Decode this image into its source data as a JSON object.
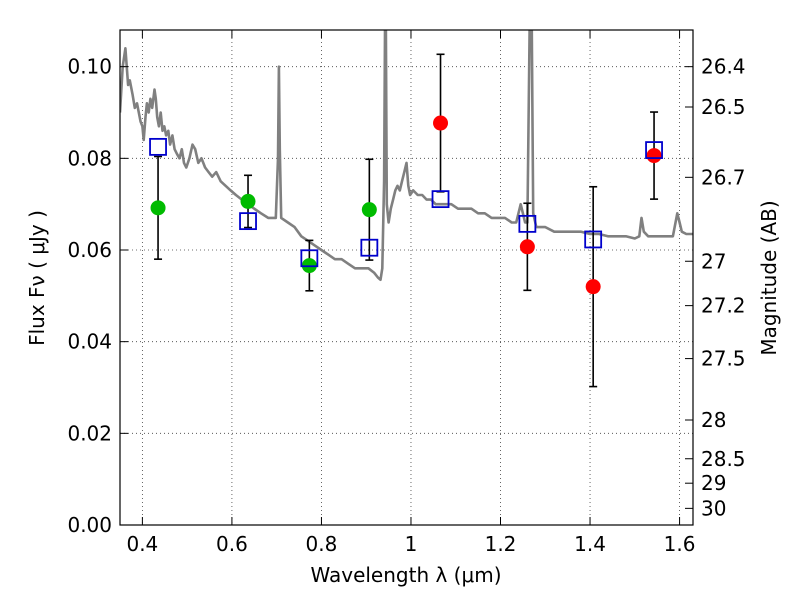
{
  "chart_data": {
    "type": "scatter",
    "xlabel": "Wavelength  λ (μm)",
    "ylabel": "Flux  Fν  ( μJy )",
    "y2label": "Magnitude (AB)",
    "xlim": [
      0.35,
      1.63
    ],
    "ylim": [
      0.0,
      0.108
    ],
    "grid": true,
    "x_ticks": [
      0.4,
      0.6,
      0.8,
      1.0,
      1.2,
      1.4,
      1.6
    ],
    "x_tick_labels": [
      "0.4",
      "0.6",
      "0.8",
      "1",
      "1.2",
      "1.4",
      "1.6"
    ],
    "y_ticks": [
      0.0,
      0.02,
      0.04,
      0.06,
      0.08,
      0.1
    ],
    "y_tick_labels": [
      "0.00",
      "0.02",
      "0.04",
      "0.06",
      "0.08",
      "0.10"
    ],
    "y2_ticks": [
      {
        "label": "26.4",
        "mag": 26.4
      },
      {
        "label": "26.5",
        "mag": 26.5
      },
      {
        "label": "26.7",
        "mag": 26.7
      },
      {
        "label": "27",
        "mag": 27.0
      },
      {
        "label": "27.2",
        "mag": 27.2
      },
      {
        "label": "27.5",
        "mag": 27.5
      },
      {
        "label": "28",
        "mag": 28.0
      },
      {
        "label": "28.5",
        "mag": 28.5
      },
      {
        "label": "29",
        "mag": 29.0
      },
      {
        "label": "30",
        "mag": 30.0
      }
    ],
    "series": [
      {
        "marker": "circle",
        "color": "#00bb00",
        "points": [
          {
            "x": 0.435,
            "y": 0.0692,
            "err": 0.0112
          },
          {
            "x": 0.636,
            "y": 0.0706,
            "err": 0.0057
          },
          {
            "x": 0.773,
            "y": 0.0566,
            "err": 0.0055
          },
          {
            "x": 0.907,
            "y": 0.0688,
            "err": 0.011
          }
        ]
      },
      {
        "marker": "circle",
        "color": "#ff0000",
        "points": [
          {
            "x": 1.066,
            "y": 0.0877,
            "err": 0.015
          },
          {
            "x": 1.26,
            "y": 0.0607,
            "err": 0.0095
          },
          {
            "x": 1.407,
            "y": 0.052,
            "err": 0.0218
          },
          {
            "x": 1.543,
            "y": 0.0806,
            "err": 0.0095
          }
        ]
      },
      {
        "marker": "open-square",
        "color": "#0000cc",
        "points": [
          {
            "x": 0.435,
            "y": 0.0825
          },
          {
            "x": 0.636,
            "y": 0.0663
          },
          {
            "x": 0.773,
            "y": 0.0582
          },
          {
            "x": 0.907,
            "y": 0.0605
          },
          {
            "x": 1.066,
            "y": 0.0711
          },
          {
            "x": 1.26,
            "y": 0.0657
          },
          {
            "x": 1.407,
            "y": 0.0623
          },
          {
            "x": 1.543,
            "y": 0.0818
          }
        ]
      },
      {
        "marker": "line",
        "color": "#808080",
        "points": [
          [
            0.35,
            0.09
          ],
          [
            0.356,
            0.1
          ],
          [
            0.362,
            0.104
          ],
          [
            0.368,
            0.096
          ],
          [
            0.372,
            0.097
          ],
          [
            0.378,
            0.094
          ],
          [
            0.383,
            0.091
          ],
          [
            0.388,
            0.092
          ],
          [
            0.392,
            0.09
          ],
          [
            0.396,
            0.088
          ],
          [
            0.4,
            0.087
          ],
          [
            0.403,
            0.084
          ],
          [
            0.407,
            0.089
          ],
          [
            0.41,
            0.092
          ],
          [
            0.414,
            0.09
          ],
          [
            0.418,
            0.093
          ],
          [
            0.422,
            0.091
          ],
          [
            0.427,
            0.095
          ],
          [
            0.43,
            0.093
          ],
          [
            0.433,
            0.089
          ],
          [
            0.437,
            0.087
          ],
          [
            0.441,
            0.09
          ],
          [
            0.445,
            0.086
          ],
          [
            0.449,
            0.087
          ],
          [
            0.453,
            0.085
          ],
          [
            0.458,
            0.086
          ],
          [
            0.462,
            0.083
          ],
          [
            0.467,
            0.085
          ],
          [
            0.472,
            0.082
          ],
          [
            0.477,
            0.081
          ],
          [
            0.483,
            0.08
          ],
          [
            0.488,
            0.082
          ],
          [
            0.493,
            0.079
          ],
          [
            0.498,
            0.078
          ],
          [
            0.505,
            0.08
          ],
          [
            0.512,
            0.083
          ],
          [
            0.518,
            0.082
          ],
          [
            0.525,
            0.079
          ],
          [
            0.532,
            0.08
          ],
          [
            0.54,
            0.078
          ],
          [
            0.548,
            0.077
          ],
          [
            0.556,
            0.076
          ],
          [
            0.565,
            0.077
          ],
          [
            0.575,
            0.075
          ],
          [
            0.586,
            0.074
          ],
          [
            0.597,
            0.073
          ],
          [
            0.609,
            0.072
          ],
          [
            0.622,
            0.071
          ],
          [
            0.636,
            0.07
          ],
          [
            0.65,
            0.069
          ],
          [
            0.665,
            0.068
          ],
          [
            0.681,
            0.067
          ],
          [
            0.698,
            0.067
          ],
          [
            0.703,
            0.08
          ],
          [
            0.705,
            0.1
          ],
          [
            0.707,
            0.082
          ],
          [
            0.71,
            0.067
          ],
          [
            0.725,
            0.066
          ],
          [
            0.74,
            0.065
          ],
          [
            0.755,
            0.063
          ],
          [
            0.77,
            0.062
          ],
          [
            0.785,
            0.061
          ],
          [
            0.8,
            0.06
          ],
          [
            0.815,
            0.059
          ],
          [
            0.83,
            0.058
          ],
          [
            0.845,
            0.058
          ],
          [
            0.86,
            0.057
          ],
          [
            0.875,
            0.056
          ],
          [
            0.89,
            0.056
          ],
          [
            0.905,
            0.056
          ],
          [
            0.918,
            0.055
          ],
          [
            0.926,
            0.054
          ],
          [
            0.932,
            0.0535
          ],
          [
            0.936,
            0.056
          ],
          [
            0.94,
            0.075
          ],
          [
            0.942,
            0.108
          ],
          [
            0.944,
            0.108
          ],
          [
            0.946,
            0.07
          ],
          [
            0.95,
            0.066
          ],
          [
            0.955,
            0.069
          ],
          [
            0.96,
            0.071
          ],
          [
            0.965,
            0.073
          ],
          [
            0.97,
            0.074
          ],
          [
            0.975,
            0.073
          ],
          [
            0.98,
            0.075
          ],
          [
            0.985,
            0.077
          ],
          [
            0.99,
            0.079
          ],
          [
            0.994,
            0.074
          ],
          [
            0.998,
            0.072
          ],
          [
            1.005,
            0.073
          ],
          [
            1.015,
            0.072
          ],
          [
            1.025,
            0.072
          ],
          [
            1.035,
            0.071
          ],
          [
            1.045,
            0.071
          ],
          [
            1.055,
            0.07
          ],
          [
            1.065,
            0.07
          ],
          [
            1.075,
            0.07
          ],
          [
            1.09,
            0.07
          ],
          [
            1.105,
            0.069
          ],
          [
            1.12,
            0.069
          ],
          [
            1.135,
            0.069
          ],
          [
            1.15,
            0.068
          ],
          [
            1.165,
            0.068
          ],
          [
            1.18,
            0.067
          ],
          [
            1.195,
            0.067
          ],
          [
            1.21,
            0.067
          ],
          [
            1.225,
            0.066
          ],
          [
            1.235,
            0.066
          ],
          [
            1.245,
            0.07
          ],
          [
            1.25,
            0.068
          ],
          [
            1.255,
            0.066
          ],
          [
            1.26,
            0.066
          ],
          [
            1.265,
            0.108
          ],
          [
            1.27,
            0.108
          ],
          [
            1.273,
            0.068
          ],
          [
            1.28,
            0.065
          ],
          [
            1.3,
            0.065
          ],
          [
            1.32,
            0.064
          ],
          [
            1.34,
            0.064
          ],
          [
            1.36,
            0.064
          ],
          [
            1.38,
            0.064
          ],
          [
            1.4,
            0.0635
          ],
          [
            1.42,
            0.0635
          ],
          [
            1.44,
            0.063
          ],
          [
            1.46,
            0.063
          ],
          [
            1.48,
            0.063
          ],
          [
            1.5,
            0.0625
          ],
          [
            1.51,
            0.063
          ],
          [
            1.515,
            0.067
          ],
          [
            1.52,
            0.064
          ],
          [
            1.53,
            0.063
          ],
          [
            1.55,
            0.063
          ],
          [
            1.57,
            0.063
          ],
          [
            1.585,
            0.063
          ],
          [
            1.595,
            0.068
          ],
          [
            1.6,
            0.066
          ],
          [
            1.605,
            0.064
          ],
          [
            1.615,
            0.0635
          ],
          [
            1.63,
            0.0635
          ]
        ]
      }
    ]
  }
}
